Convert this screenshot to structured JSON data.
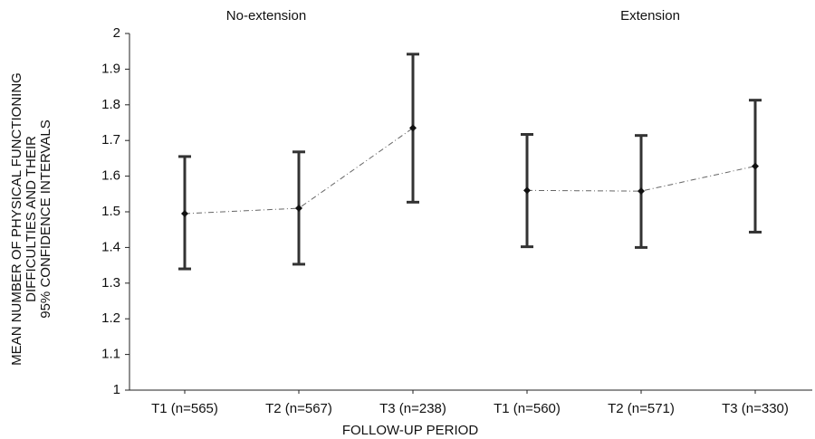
{
  "chart_data": {
    "type": "errorbar",
    "ylabel": [
      "MEAN NUMBER OF PHYSICAL FUNCTIONING",
      "DIFFICULTIES AND THEIR",
      "95% CONFIDENCE INTERVALS"
    ],
    "xlabel": "FOLLOW-UP PERIOD",
    "categories": [
      "T1 (n=565)",
      "T2 (n=567)",
      "T3 (n=238)",
      "T1 (n=560)",
      "T2 (n=571)",
      "T3 (n=330)"
    ],
    "series": [
      {
        "name": "No-extension",
        "color": "#333333",
        "values": [
          1.495,
          1.51,
          1.735,
          null,
          null,
          null
        ],
        "lower": [
          1.34,
          1.353,
          1.527,
          null,
          null,
          null
        ],
        "upper": [
          1.655,
          1.668,
          1.942,
          null,
          null,
          null
        ]
      },
      {
        "name": "Extension",
        "color": "#333333",
        "values": [
          null,
          null,
          null,
          1.56,
          1.558,
          1.628
        ],
        "lower": [
          null,
          null,
          null,
          1.402,
          1.4,
          1.443
        ],
        "upper": [
          null,
          null,
          null,
          1.717,
          1.714,
          1.813
        ]
      }
    ],
    "ylim": [
      1,
      2
    ],
    "yticks": [
      1,
      1.1,
      1.2,
      1.3,
      1.4,
      1.5,
      1.6,
      1.7,
      1.8,
      1.9,
      2
    ]
  }
}
